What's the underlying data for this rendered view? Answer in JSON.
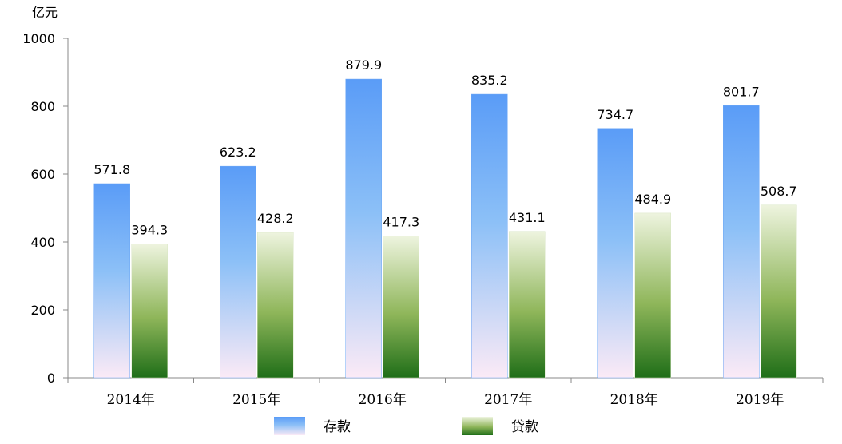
{
  "chart_data": {
    "type": "bar",
    "unit_label": "亿元",
    "categories": [
      "2014年",
      "2015年",
      "2016年",
      "2017年",
      "2018年",
      "2019年"
    ],
    "series": [
      {
        "name": "存款",
        "values": [
          571.8,
          623.2,
          879.9,
          835.2,
          734.7,
          801.7
        ],
        "value_labels": [
          "571.8",
          "623.2",
          "879.9",
          "835.2",
          "734.7",
          "801.7"
        ],
        "color_top": "#5a9cf7",
        "color_bottom": "#fbeaf6"
      },
      {
        "name": "贷款",
        "values": [
          394.3,
          428.2,
          417.3,
          431.1,
          484.9,
          508.7
        ],
        "value_labels": [
          "394.3",
          "428.2",
          "417.3",
          "431.1",
          "484.9",
          "508.7"
        ],
        "color_top": "#eef4df",
        "color_bottom": "#1f6e18"
      }
    ],
    "ylim": [
      0,
      1000
    ],
    "yticks": [
      0,
      200,
      400,
      600,
      800,
      1000
    ],
    "ytick_labels": [
      "0",
      "200",
      "400",
      "600",
      "800",
      "1000"
    ],
    "grid": false,
    "legend_position": "bottom"
  }
}
